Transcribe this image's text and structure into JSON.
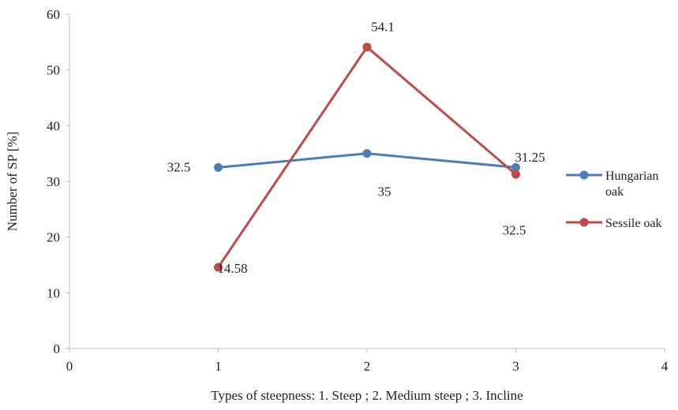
{
  "chart_data": {
    "type": "line",
    "title": "",
    "xlabel": "Types of steepness: 1. Steep ; 2. Medium steep ; 3. Incline",
    "ylabel": "Number of SP [%]",
    "xlim": [
      0,
      4
    ],
    "ylim": [
      0,
      60
    ],
    "x_ticks": [
      "0",
      "1",
      "2",
      "3",
      "4"
    ],
    "y_ticks": [
      "0",
      "10",
      "20",
      "30",
      "40",
      "50",
      "60"
    ],
    "grid": false,
    "legend_position": "right",
    "series": [
      {
        "name": "Hungarian oak",
        "legend_lines": [
          "Hungarian",
          "oak"
        ],
        "color": "#4a7ebb",
        "x": [
          1,
          2,
          3
        ],
        "values": [
          32.5,
          35,
          32.5
        ],
        "labels": [
          "32.5",
          "35",
          "32.5"
        ]
      },
      {
        "name": "Sessile oak",
        "legend_lines": [
          "Sessile oak"
        ],
        "color": "#be4b48",
        "x": [
          1,
          2,
          3
        ],
        "values": [
          14.58,
          54.1,
          31.25
        ],
        "labels": [
          "14.58",
          "54.1",
          "31.25"
        ]
      }
    ]
  }
}
